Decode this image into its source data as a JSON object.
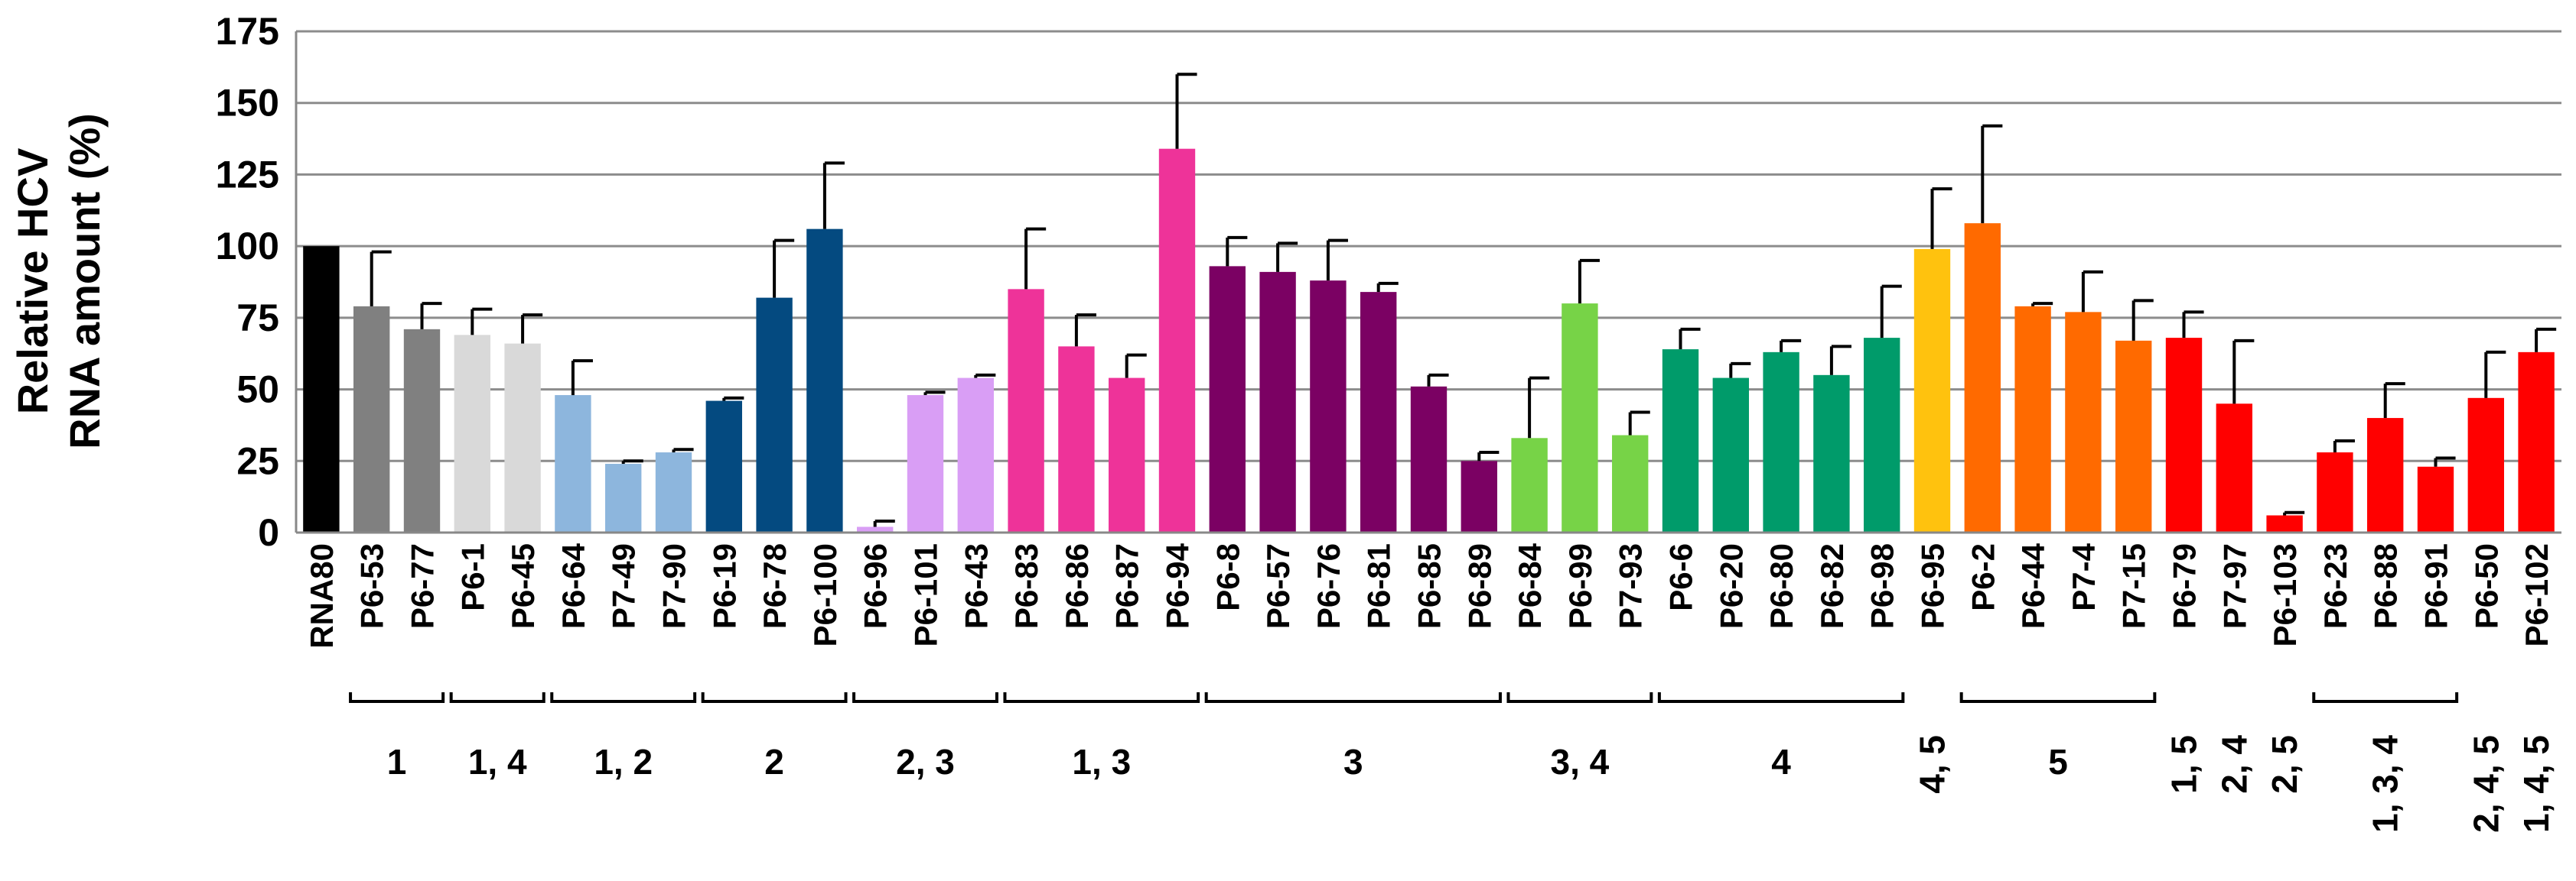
{
  "chart_data": {
    "type": "bar",
    "ylabel_line1": "Relative HCV",
    "ylabel_line2": "RNA amount (%)",
    "ylim": [
      0,
      175
    ],
    "yticks": [
      "0",
      "25",
      "50",
      "75",
      "100",
      "125",
      "150",
      "175"
    ],
    "grid": true,
    "bars": [
      {
        "label": "RNA80",
        "value": 100,
        "err": 0,
        "color": "#000000"
      },
      {
        "label": "P6-53",
        "value": 79,
        "err": 19,
        "color": "#808080"
      },
      {
        "label": "P6-77",
        "value": 71,
        "err": 9,
        "color": "#808080"
      },
      {
        "label": "P6-1",
        "value": 69,
        "err": 9,
        "color": "#d9d9d9"
      },
      {
        "label": "P6-45",
        "value": 66,
        "err": 10,
        "color": "#d9d9d9"
      },
      {
        "label": "P6-64",
        "value": 48,
        "err": 12,
        "color": "#8db6dd"
      },
      {
        "label": "P7-49",
        "value": 24,
        "err": 1,
        "color": "#8db6dd"
      },
      {
        "label": "P7-90",
        "value": 28,
        "err": 1,
        "color": "#8db6dd"
      },
      {
        "label": "P6-19",
        "value": 46,
        "err": 1,
        "color": "#044a80"
      },
      {
        "label": "P6-78",
        "value": 82,
        "err": 20,
        "color": "#044a80"
      },
      {
        "label": "P6-100",
        "value": 106,
        "err": 23,
        "color": "#044a80"
      },
      {
        "label": "P6-96",
        "value": 2,
        "err": 2,
        "color": "#d99ef5"
      },
      {
        "label": "P6-101",
        "value": 48,
        "err": 1,
        "color": "#d99ef5"
      },
      {
        "label": "P6-43",
        "value": 54,
        "err": 1,
        "color": "#d99ef5"
      },
      {
        "label": "P6-83",
        "value": 85,
        "err": 21,
        "color": "#ee3399"
      },
      {
        "label": "P6-86",
        "value": 65,
        "err": 11,
        "color": "#ee3399"
      },
      {
        "label": "P6-87",
        "value": 54,
        "err": 8,
        "color": "#ee3399"
      },
      {
        "label": "P6-94",
        "value": 134,
        "err": 26,
        "color": "#ee3399"
      },
      {
        "label": "P6-8",
        "value": 93,
        "err": 10,
        "color": "#7b0163"
      },
      {
        "label": "P6-57",
        "value": 91,
        "err": 10,
        "color": "#7b0163"
      },
      {
        "label": "P6-76",
        "value": 88,
        "err": 14,
        "color": "#7b0163"
      },
      {
        "label": "P6-81",
        "value": 84,
        "err": 3,
        "color": "#7b0163"
      },
      {
        "label": "P6-85",
        "value": 51,
        "err": 4,
        "color": "#7b0163"
      },
      {
        "label": "P6-89",
        "value": 25,
        "err": 3,
        "color": "#7b0163"
      },
      {
        "label": "P6-84",
        "value": 33,
        "err": 21,
        "color": "#77d347"
      },
      {
        "label": "P6-99",
        "value": 80,
        "err": 15,
        "color": "#77d347"
      },
      {
        "label": "P7-93",
        "value": 34,
        "err": 8,
        "color": "#77d347"
      },
      {
        "label": "P6-6",
        "value": 64,
        "err": 7,
        "color": "#009b6a"
      },
      {
        "label": "P6-20",
        "value": 54,
        "err": 5,
        "color": "#009b6a"
      },
      {
        "label": "P6-80",
        "value": 63,
        "err": 4,
        "color": "#009b6a"
      },
      {
        "label": "P6-82",
        "value": 55,
        "err": 10,
        "color": "#009b6a"
      },
      {
        "label": "P6-98",
        "value": 68,
        "err": 18,
        "color": "#009b6a"
      },
      {
        "label": "P6-95",
        "value": 99,
        "err": 21,
        "color": "#ffc20e"
      },
      {
        "label": "P6-2",
        "value": 108,
        "err": 34,
        "color": "#ff6a00"
      },
      {
        "label": "P6-44",
        "value": 79,
        "err": 1,
        "color": "#ff6a00"
      },
      {
        "label": "P7-4",
        "value": 77,
        "err": 14,
        "color": "#ff6a00"
      },
      {
        "label": "P7-15",
        "value": 67,
        "err": 14,
        "color": "#ff6a00"
      },
      {
        "label": "P6-79",
        "value": 68,
        "err": 9,
        "color": "#ff0000"
      },
      {
        "label": "P7-97",
        "value": 45,
        "err": 22,
        "color": "#ff0000"
      },
      {
        "label": "P6-103",
        "value": 6,
        "err": 1,
        "color": "#ff0000"
      },
      {
        "label": "P6-23",
        "value": 28,
        "err": 4,
        "color": "#ff0000"
      },
      {
        "label": "P6-88",
        "value": 40,
        "err": 12,
        "color": "#ff0000"
      },
      {
        "label": "P6-91",
        "value": 23,
        "err": 3,
        "color": "#ff0000"
      },
      {
        "label": "P6-50",
        "value": 47,
        "err": 16,
        "color": "#ff0000"
      },
      {
        "label": "P6-102",
        "value": 63,
        "err": 8,
        "color": "#ff0000"
      }
    ],
    "groups": [
      {
        "label": "1",
        "from": 1,
        "to": 2,
        "vertical": false,
        "bracket": true
      },
      {
        "label": "1, 4",
        "from": 3,
        "to": 4,
        "vertical": false,
        "bracket": true
      },
      {
        "label": "1, 2",
        "from": 5,
        "to": 7,
        "vertical": false,
        "bracket": true
      },
      {
        "label": "2",
        "from": 8,
        "to": 10,
        "vertical": false,
        "bracket": true
      },
      {
        "label": "2, 3",
        "from": 11,
        "to": 13,
        "vertical": false,
        "bracket": true
      },
      {
        "label": "1, 3",
        "from": 14,
        "to": 17,
        "vertical": false,
        "bracket": true
      },
      {
        "label": "3",
        "from": 18,
        "to": 23,
        "vertical": false,
        "bracket": true
      },
      {
        "label": "3, 4",
        "from": 24,
        "to": 26,
        "vertical": false,
        "bracket": true
      },
      {
        "label": "4",
        "from": 27,
        "to": 31,
        "vertical": false,
        "bracket": true
      },
      {
        "label": "4, 5",
        "from": 32,
        "to": 32,
        "vertical": true,
        "bracket": false
      },
      {
        "label": "5",
        "from": 33,
        "to": 36,
        "vertical": false,
        "bracket": true
      },
      {
        "label": "1, 5",
        "from": 37,
        "to": 37,
        "vertical": true,
        "bracket": false
      },
      {
        "label": "2, 4",
        "from": 38,
        "to": 38,
        "vertical": true,
        "bracket": false
      },
      {
        "label": "2, 5",
        "from": 39,
        "to": 39,
        "vertical": true,
        "bracket": false
      },
      {
        "label": "1, 3, 4",
        "from": 40,
        "to": 42,
        "vertical": true,
        "bracket": true
      },
      {
        "label": "2, 4, 5",
        "from": 43,
        "to": 43,
        "vertical": true,
        "bracket": false
      },
      {
        "label": "1, 4, 5",
        "from": 44,
        "to": 44,
        "vertical": true,
        "bracket": false
      }
    ]
  }
}
